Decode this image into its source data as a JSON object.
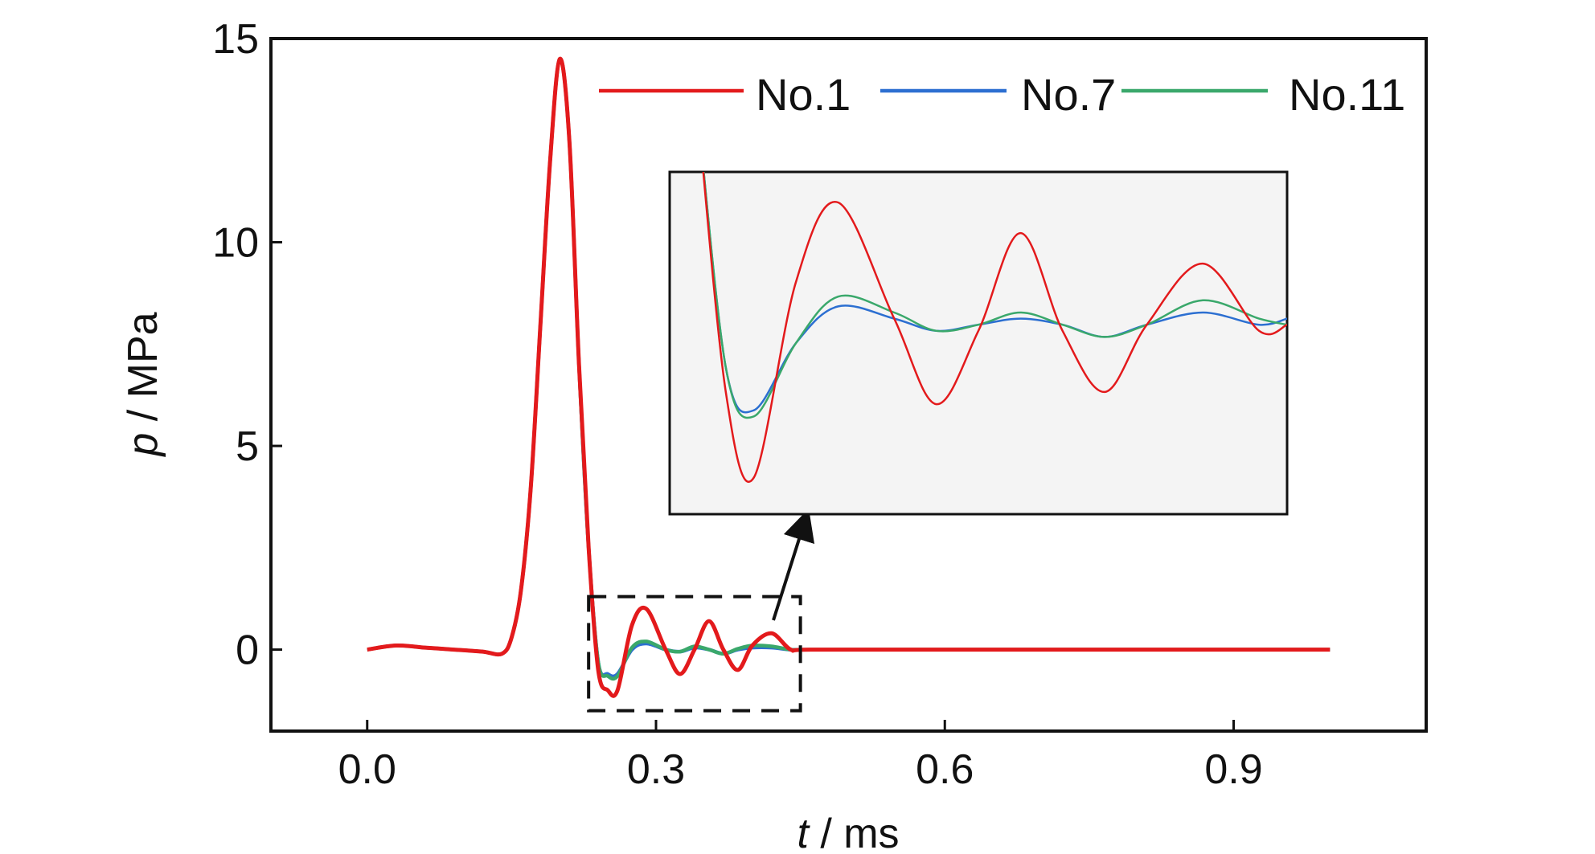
{
  "chart_data": {
    "type": "line",
    "xlabel": {
      "var": "t",
      "unit": " / ms"
    },
    "ylabel": {
      "var": "p",
      "unit": " / MPa"
    },
    "xlim": [
      -0.1,
      1.1
    ],
    "ylim": [
      -2,
      15
    ],
    "xticks": [
      "0.0",
      "0.3",
      "0.6",
      "0.9"
    ],
    "xtick_values": [
      0.0,
      0.3,
      0.6,
      0.9
    ],
    "yticks": [
      "0",
      "5",
      "10",
      "15"
    ],
    "ytick_values": [
      0,
      5,
      10,
      15
    ],
    "legend": {
      "position": "top-right",
      "entries": [
        "No.1",
        "No.7",
        "No.11"
      ]
    },
    "colors": {
      "No.1": "#e31a1c",
      "No.7": "#2c6fd1",
      "No.11": "#3aa86b"
    },
    "series": [
      {
        "name": "No.1",
        "x": [
          0.0,
          0.03,
          0.06,
          0.09,
          0.12,
          0.14,
          0.15,
          0.16,
          0.17,
          0.18,
          0.19,
          0.2,
          0.21,
          0.22,
          0.23,
          0.24,
          0.25,
          0.26,
          0.275,
          0.29,
          0.31,
          0.325,
          0.34,
          0.355,
          0.37,
          0.385,
          0.4,
          0.42,
          0.44,
          0.46,
          0.6,
          0.8,
          1.0
        ],
        "y": [
          0.0,
          0.1,
          0.05,
          0.0,
          -0.05,
          -0.1,
          0.3,
          1.5,
          4.0,
          8.0,
          12.0,
          14.5,
          12.5,
          7.0,
          2.5,
          -0.5,
          -1.0,
          -1.0,
          0.6,
          1.0,
          0.0,
          -0.6,
          0.0,
          0.7,
          0.0,
          -0.5,
          0.1,
          0.4,
          0.0,
          0.0,
          0.0,
          0.0,
          0.0
        ]
      },
      {
        "name": "No.7",
        "x": [
          0.0,
          0.03,
          0.06,
          0.09,
          0.12,
          0.14,
          0.15,
          0.16,
          0.17,
          0.18,
          0.19,
          0.2,
          0.21,
          0.22,
          0.23,
          0.24,
          0.25,
          0.26,
          0.275,
          0.29,
          0.31,
          0.325,
          0.34,
          0.355,
          0.37,
          0.385,
          0.4,
          0.42,
          0.44,
          0.46,
          0.6,
          0.8,
          1.0
        ],
        "y": [
          0.0,
          0.1,
          0.05,
          0.0,
          -0.05,
          -0.1,
          0.3,
          1.5,
          4.0,
          8.0,
          12.0,
          14.5,
          12.5,
          7.0,
          2.5,
          -0.3,
          -0.6,
          -0.6,
          0.0,
          0.15,
          0.0,
          -0.05,
          0.05,
          0.0,
          -0.1,
          0.0,
          0.05,
          0.05,
          0.0,
          0.0,
          0.0,
          0.0,
          0.0
        ]
      },
      {
        "name": "No.11",
        "x": [
          0.0,
          0.03,
          0.06,
          0.09,
          0.12,
          0.14,
          0.15,
          0.16,
          0.17,
          0.18,
          0.19,
          0.2,
          0.21,
          0.22,
          0.23,
          0.24,
          0.25,
          0.26,
          0.275,
          0.29,
          0.31,
          0.325,
          0.34,
          0.355,
          0.37,
          0.385,
          0.4,
          0.42,
          0.44,
          0.46,
          0.6,
          0.8,
          1.0
        ],
        "y": [
          0.0,
          0.1,
          0.05,
          0.0,
          -0.05,
          -0.1,
          0.3,
          1.5,
          4.0,
          8.0,
          12.0,
          14.5,
          12.5,
          7.0,
          2.5,
          -0.3,
          -0.65,
          -0.65,
          0.05,
          0.2,
          0.0,
          -0.05,
          0.08,
          0.0,
          -0.1,
          0.02,
          0.1,
          0.08,
          0.0,
          0.0,
          0.0,
          0.0,
          0.0
        ]
      }
    ],
    "inset": {
      "source_box": {
        "x": [
          0.23,
          0.45
        ],
        "y": [
          -1.5,
          1.3
        ]
      },
      "background": "#f4f4f4",
      "series": [
        {
          "name": "No.1",
          "x": [
            0.24,
            0.25,
            0.26,
            0.275,
            0.29,
            0.31,
            0.325,
            0.34,
            0.355,
            0.37,
            0.385,
            0.4,
            0.42,
            0.44,
            0.45
          ],
          "y": [
            1.8,
            -0.5,
            -1.2,
            0.4,
            1.05,
            0.1,
            -0.6,
            0.0,
            0.8,
            0.0,
            -0.5,
            0.05,
            0.55,
            0.0,
            0.05
          ]
        },
        {
          "name": "No.7",
          "x": [
            0.24,
            0.25,
            0.26,
            0.275,
            0.29,
            0.31,
            0.325,
            0.34,
            0.355,
            0.37,
            0.385,
            0.4,
            0.42,
            0.44,
            0.45
          ],
          "y": [
            1.8,
            -0.3,
            -0.65,
            -0.1,
            0.2,
            0.1,
            0.0,
            0.05,
            0.1,
            0.05,
            -0.05,
            0.05,
            0.15,
            0.05,
            0.1
          ]
        },
        {
          "name": "No.11",
          "x": [
            0.24,
            0.25,
            0.26,
            0.275,
            0.29,
            0.31,
            0.325,
            0.34,
            0.355,
            0.37,
            0.385,
            0.4,
            0.42,
            0.44,
            0.45
          ],
          "y": [
            1.8,
            -0.3,
            -0.7,
            -0.1,
            0.28,
            0.15,
            0.0,
            0.05,
            0.15,
            0.05,
            -0.05,
            0.05,
            0.25,
            0.1,
            0.05
          ]
        }
      ]
    }
  }
}
